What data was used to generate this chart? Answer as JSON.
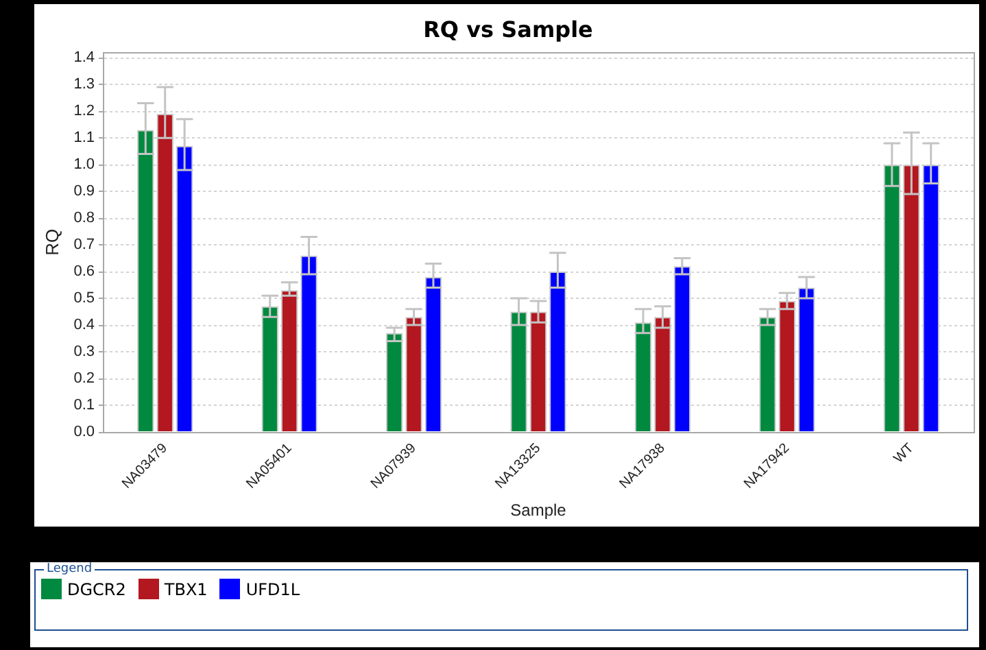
{
  "chart_data": {
    "type": "bar",
    "title": "RQ vs Sample",
    "xlabel": "Sample",
    "ylabel": "RQ",
    "legend_title": "Legend",
    "categories": [
      "NA03479",
      "NA05401",
      "NA07939",
      "NA13325",
      "NA17938",
      "NA17942",
      "WT"
    ],
    "series": [
      {
        "name": "DGCR2",
        "color": "#00893f",
        "values": [
          1.13,
          0.47,
          0.37,
          0.45,
          0.41,
          0.43,
          1.0
        ],
        "errors": [
          [
            1.04,
            1.23
          ],
          [
            0.43,
            0.51
          ],
          [
            0.34,
            0.39
          ],
          [
            0.4,
            0.5
          ],
          [
            0.37,
            0.46
          ],
          [
            0.4,
            0.46
          ],
          [
            0.92,
            1.08
          ]
        ]
      },
      {
        "name": "TBX1",
        "color": "#b3171f",
        "values": [
          1.19,
          0.53,
          0.43,
          0.45,
          0.43,
          0.49,
          1.0
        ],
        "errors": [
          [
            1.1,
            1.29
          ],
          [
            0.51,
            0.56
          ],
          [
            0.4,
            0.46
          ],
          [
            0.41,
            0.49
          ],
          [
            0.39,
            0.47
          ],
          [
            0.46,
            0.52
          ],
          [
            0.89,
            1.12
          ]
        ]
      },
      {
        "name": "UFD1L",
        "color": "#0000ff",
        "values": [
          1.07,
          0.66,
          0.58,
          0.6,
          0.62,
          0.54,
          1.0
        ],
        "errors": [
          [
            0.98,
            1.17
          ],
          [
            0.59,
            0.73
          ],
          [
            0.54,
            0.63
          ],
          [
            0.54,
            0.67
          ],
          [
            0.59,
            0.65
          ],
          [
            0.5,
            0.58
          ],
          [
            0.93,
            1.08
          ]
        ]
      }
    ],
    "ylim": [
      0,
      1.42
    ],
    "yticks": [
      {
        "value": 0,
        "label": "0.0"
      },
      0.1,
      0.2,
      0.3,
      0.4,
      0.5,
      0.6,
      0.7,
      0.8,
      0.9,
      {
        "value": 1,
        "label": "1.0"
      },
      1.1,
      1.2,
      1.3,
      1.4
    ],
    "grid": "y",
    "legend": "bottom"
  }
}
